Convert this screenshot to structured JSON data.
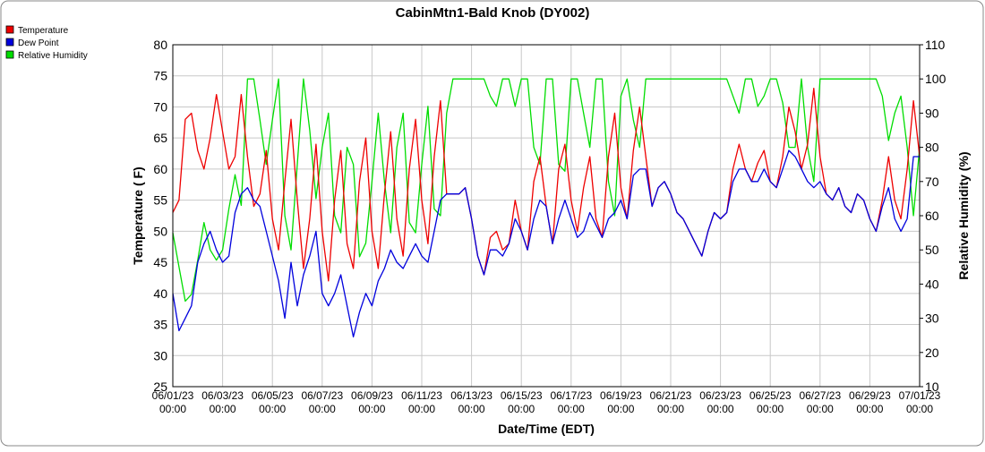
{
  "chart_data": {
    "type": "line",
    "title": "CabinMtn1-Bald Knob (DY002)",
    "x_label": "Date/Time (EDT)",
    "y_label": "Temperature ( F)",
    "y2_label": "Relative Humidity (%)",
    "x": [
      "06/01/23 00:00",
      "06/01/23 06:00",
      "06/01/23 12:00",
      "06/01/23 18:00",
      "06/02/23 00:00",
      "06/02/23 06:00",
      "06/02/23 12:00",
      "06/02/23 18:00",
      "06/03/23 00:00",
      "06/03/23 06:00",
      "06/03/23 12:00",
      "06/03/23 18:00",
      "06/04/23 00:00",
      "06/04/23 06:00",
      "06/04/23 12:00",
      "06/04/23 18:00",
      "06/05/23 00:00",
      "06/05/23 06:00",
      "06/05/23 12:00",
      "06/05/23 18:00",
      "06/06/23 00:00",
      "06/06/23 06:00",
      "06/06/23 12:00",
      "06/06/23 18:00",
      "06/07/23 00:00",
      "06/07/23 06:00",
      "06/07/23 12:00",
      "06/07/23 18:00",
      "06/08/23 00:00",
      "06/08/23 06:00",
      "06/08/23 12:00",
      "06/08/23 18:00",
      "06/09/23 00:00",
      "06/09/23 06:00",
      "06/09/23 12:00",
      "06/09/23 18:00",
      "06/10/23 00:00",
      "06/10/23 06:00",
      "06/10/23 12:00",
      "06/10/23 18:00",
      "06/11/23 00:00",
      "06/11/23 06:00",
      "06/11/23 12:00",
      "06/11/23 18:00",
      "06/12/23 00:00",
      "06/12/23 06:00",
      "06/12/23 12:00",
      "06/12/23 18:00",
      "06/13/23 00:00",
      "06/13/23 06:00",
      "06/13/23 12:00",
      "06/13/23 18:00",
      "06/14/23 00:00",
      "06/14/23 06:00",
      "06/14/23 12:00",
      "06/14/23 18:00",
      "06/15/23 00:00",
      "06/15/23 06:00",
      "06/15/23 12:00",
      "06/15/23 18:00",
      "06/16/23 00:00",
      "06/16/23 06:00",
      "06/16/23 12:00",
      "06/16/23 18:00",
      "06/17/23 00:00",
      "06/17/23 06:00",
      "06/17/23 12:00",
      "06/17/23 18:00",
      "06/18/23 00:00",
      "06/18/23 06:00",
      "06/18/23 12:00",
      "06/18/23 18:00",
      "06/19/23 00:00",
      "06/19/23 06:00",
      "06/19/23 12:00",
      "06/19/23 18:00",
      "06/20/23 00:00",
      "06/20/23 06:00",
      "06/20/23 12:00",
      "06/20/23 18:00",
      "06/21/23 00:00",
      "06/21/23 06:00",
      "06/21/23 12:00",
      "06/21/23 18:00",
      "06/22/23 00:00",
      "06/22/23 06:00",
      "06/22/23 12:00",
      "06/22/23 18:00",
      "06/23/23 00:00",
      "06/23/23 06:00",
      "06/23/23 12:00",
      "06/23/23 18:00",
      "06/24/23 00:00",
      "06/24/23 06:00",
      "06/24/23 12:00",
      "06/24/23 18:00",
      "06/25/23 00:00",
      "06/25/23 06:00",
      "06/25/23 12:00",
      "06/25/23 18:00",
      "06/26/23 00:00",
      "06/26/23 06:00",
      "06/26/23 12:00",
      "06/26/23 18:00",
      "06/27/23 00:00",
      "06/27/23 06:00",
      "06/27/23 12:00",
      "06/27/23 18:00",
      "06/28/23 00:00",
      "06/28/23 06:00",
      "06/28/23 12:00",
      "06/28/23 18:00",
      "06/29/23 00:00",
      "06/29/23 06:00",
      "06/29/23 12:00",
      "06/29/23 18:00",
      "06/30/23 00:00",
      "06/30/23 06:00",
      "06/30/23 12:00",
      "06/30/23 18:00",
      "07/01/23 00:00"
    ],
    "xticks": [
      "06/01/23 00:00",
      "06/03/23 00:00",
      "06/05/23 00:00",
      "06/07/23 00:00",
      "06/09/23 00:00",
      "06/11/23 00:00",
      "06/13/23 00:00",
      "06/15/23 00:00",
      "06/17/23 00:00",
      "06/19/23 00:00",
      "06/21/23 00:00",
      "06/23/23 00:00",
      "06/25/23 00:00",
      "06/27/23 00:00",
      "06/29/23 00:00",
      "07/01/23 00:00"
    ],
    "ylim": [
      25,
      80
    ],
    "yticks": [
      25,
      30,
      35,
      40,
      45,
      50,
      55,
      60,
      65,
      70,
      75,
      80
    ],
    "y2lim": [
      10,
      110
    ],
    "y2ticks": [
      10,
      20,
      30,
      40,
      50,
      60,
      70,
      80,
      90,
      100,
      110
    ],
    "grid": true,
    "legend": "top-left",
    "series": [
      {
        "name": "Temperature",
        "color": "#ee0000",
        "values": [
          53,
          55,
          68,
          69,
          63,
          60,
          65,
          72,
          66,
          60,
          62,
          72,
          62,
          54,
          56,
          63,
          52,
          47,
          58,
          68,
          55,
          44,
          52,
          64,
          50,
          42,
          55,
          63,
          48,
          44,
          58,
          65,
          50,
          44,
          56,
          66,
          52,
          46,
          60,
          68,
          55,
          48,
          62,
          71,
          56,
          56,
          56,
          57,
          52,
          46,
          43,
          49,
          50,
          47,
          48,
          55,
          50,
          47,
          58,
          62,
          54,
          48,
          60,
          64,
          55,
          50,
          57,
          62,
          52,
          49,
          62,
          69,
          57,
          52,
          63,
          70,
          62,
          54,
          57,
          58,
          56,
          53,
          52,
          50,
          48,
          46,
          50,
          53,
          52,
          53,
          60,
          64,
          60,
          58,
          61,
          63,
          58,
          57,
          62,
          70,
          66,
          60,
          64,
          73,
          62,
          56,
          55,
          57,
          54,
          53,
          56,
          55,
          52,
          50,
          55,
          62,
          55,
          52,
          60,
          71,
          62
        ]
      },
      {
        "name": "Dew Point",
        "color": "#0000dd",
        "values": [
          40,
          34,
          36,
          38,
          45,
          48,
          50,
          47,
          45,
          46,
          53,
          56,
          57,
          55,
          54,
          50,
          46,
          42,
          36,
          45,
          38,
          43,
          46,
          50,
          40,
          38,
          40,
          43,
          38,
          33,
          37,
          40,
          38,
          42,
          44,
          47,
          45,
          44,
          46,
          48,
          46,
          45,
          50,
          55,
          56,
          56,
          56,
          57,
          52,
          46,
          43,
          47,
          47,
          46,
          48,
          52,
          50,
          47,
          52,
          55,
          54,
          48,
          52,
          55,
          52,
          49,
          50,
          53,
          51,
          49,
          52,
          53,
          55,
          52,
          59,
          60,
          60,
          54,
          57,
          58,
          56,
          53,
          52,
          50,
          48,
          46,
          50,
          53,
          52,
          53,
          58,
          60,
          60,
          58,
          58,
          60,
          58,
          57,
          60,
          63,
          62,
          60,
          58,
          57,
          58,
          56,
          55,
          57,
          54,
          53,
          56,
          55,
          52,
          50,
          54,
          57,
          52,
          50,
          52,
          62,
          62
        ]
      },
      {
        "name": "Relative Humidity",
        "color": "#00dd00",
        "axis": "y2",
        "values": [
          55,
          45,
          35,
          37,
          47,
          58,
          50,
          47,
          50,
          62,
          72,
          63,
          100,
          100,
          88,
          75,
          88,
          100,
          60,
          50,
          75,
          100,
          85,
          65,
          80,
          90,
          60,
          55,
          80,
          75,
          48,
          52,
          70,
          90,
          70,
          55,
          80,
          90,
          58,
          55,
          75,
          92,
          62,
          60,
          90,
          100,
          100,
          100,
          100,
          100,
          100,
          95,
          92,
          100,
          100,
          92,
          100,
          100,
          80,
          75,
          100,
          100,
          75,
          73,
          100,
          100,
          90,
          80,
          100,
          100,
          70,
          60,
          95,
          100,
          88,
          80,
          100,
          100,
          100,
          100,
          100,
          100,
          100,
          100,
          100,
          100,
          100,
          100,
          100,
          100,
          95,
          90,
          100,
          100,
          92,
          95,
          100,
          100,
          93,
          80,
          80,
          100,
          80,
          70,
          100,
          100,
          100,
          100,
          100,
          100,
          100,
          100,
          100,
          100,
          95,
          82,
          90,
          95,
          80,
          60,
          80
        ]
      }
    ]
  }
}
